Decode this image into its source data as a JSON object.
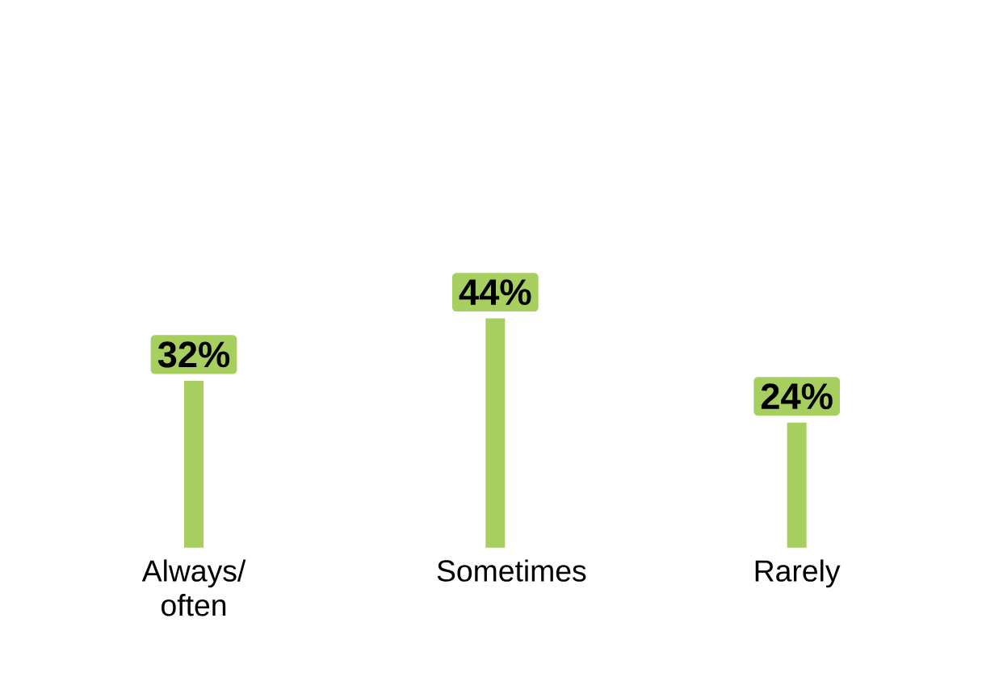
{
  "chart_data": {
    "type": "bar",
    "categories": [
      "Always/ often",
      "Sometimes",
      "Rarely"
    ],
    "values": [
      32,
      44,
      24
    ],
    "value_labels": [
      "32%",
      "44%",
      "24%"
    ],
    "color": "#a6cf5f"
  }
}
